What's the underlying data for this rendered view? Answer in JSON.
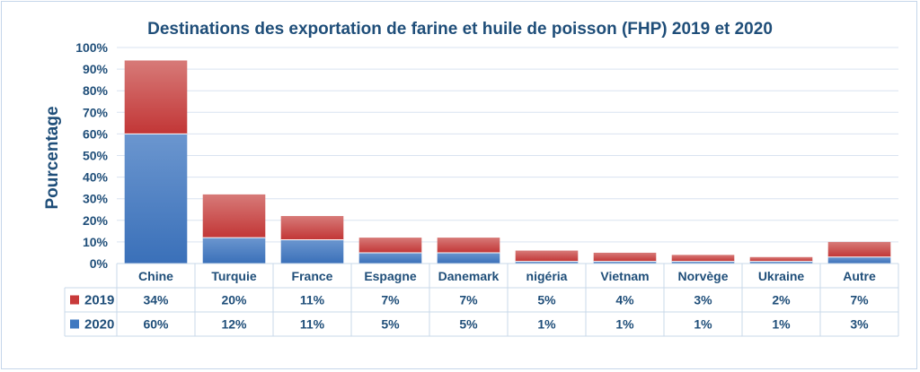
{
  "chart_data": {
    "type": "bar",
    "stacked": true,
    "title": "Destinations des exportation de farine et huile de poisson (FHP) 2019 et 2020",
    "ylabel": "Pourcentage",
    "xlabel": "",
    "ylim": [
      0,
      100
    ],
    "yticks": [
      "0%",
      "10%",
      "20%",
      "30%",
      "40%",
      "50%",
      "60%",
      "70%",
      "80%",
      "90%",
      "100%"
    ],
    "grid": true,
    "legend": "data-table-left",
    "categories": [
      "Chine",
      "Turquie",
      "France",
      "Espagne",
      "Danemark",
      "nigéria",
      "Vietnam",
      "Norvège",
      "Ukraine",
      "Autre"
    ],
    "series": [
      {
        "name": "2020",
        "color": "#3f78c0",
        "values": [
          60,
          12,
          11,
          5,
          5,
          1,
          1,
          1,
          1,
          3
        ],
        "labels": [
          "60%",
          "12%",
          "11%",
          "5%",
          "5%",
          "1%",
          "1%",
          "1%",
          "1%",
          "3%"
        ]
      },
      {
        "name": "2019",
        "color": "#c83a3a",
        "values": [
          34,
          20,
          11,
          7,
          7,
          5,
          4,
          3,
          2,
          7
        ],
        "labels": [
          "34%",
          "20%",
          "11%",
          "7%",
          "7%",
          "5%",
          "4%",
          "3%",
          "2%",
          "7%"
        ]
      }
    ]
  }
}
